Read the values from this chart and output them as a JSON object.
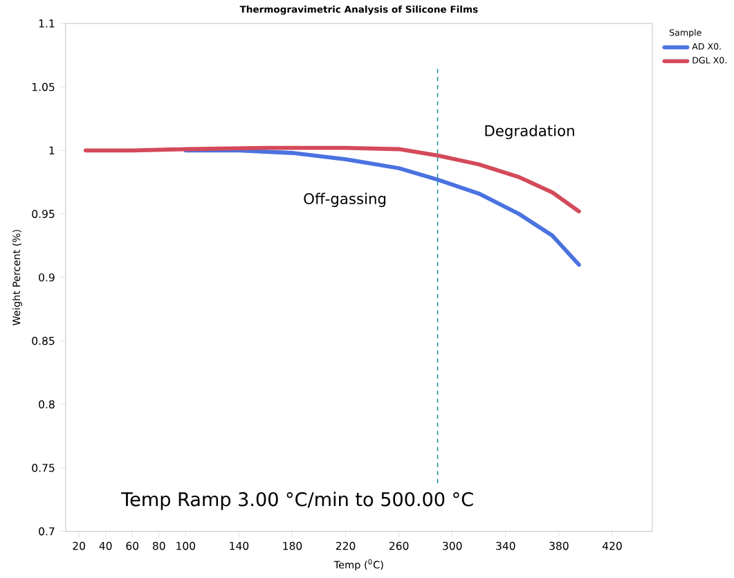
{
  "chart_data": {
    "type": "line",
    "title": "Thermogravimetric Analysis of Silicone Films",
    "xlabel": "Temp ($^{0}$C)",
    "ylabel": "Weight Percent (%)",
    "legend_title": "Sample",
    "series": [
      {
        "name": "AD X0.",
        "color": "#4a72e0",
        "x": [
          100,
          140,
          180,
          220,
          260,
          289,
          320,
          350,
          375,
          395
        ],
        "values": [
          1.0,
          1.0,
          0.998,
          0.993,
          0.986,
          0.977,
          0.966,
          0.95,
          0.933,
          0.91
        ]
      },
      {
        "name": "DGL X0.",
        "color": "#d44a5a",
        "x": [
          25,
          60,
          100,
          160,
          220,
          260,
          289,
          320,
          350,
          375,
          395
        ],
        "values": [
          1.0,
          1.0,
          1.001,
          1.002,
          1.002,
          1.001,
          0.996,
          0.989,
          0.979,
          0.967,
          0.952
        ]
      }
    ],
    "xlim": [
      10,
      450
    ],
    "xticks": [
      20,
      40,
      60,
      80,
      100,
      140,
      180,
      220,
      260,
      300,
      340,
      380,
      420
    ],
    "ylim": [
      0.7,
      1.1
    ],
    "yticks": [
      0.7,
      0.75,
      0.8,
      0.85,
      0.9,
      0.95,
      1,
      1.05,
      1.1
    ],
    "ref_lines": [
      {
        "axis": "x",
        "value": 289,
        "color": "#1a8a9a",
        "line_style": "dashed"
      }
    ],
    "annotations": [
      "Degradation",
      "Off-gassing",
      "Temp Ramp 3.00 °C/min to 500.00 °C"
    ],
    "legend": "right",
    "grid": false,
    "marker": "none",
    "line_style": "solid"
  }
}
